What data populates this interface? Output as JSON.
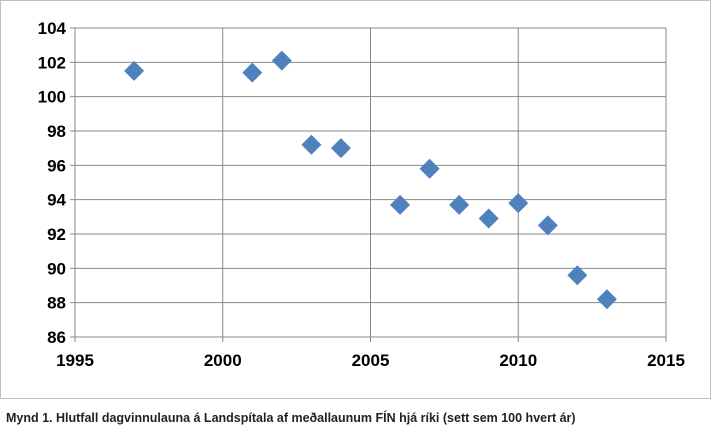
{
  "caption": "Mynd 1. Hlutfall dagvinnulauna á Landspítala af meðallaunum FÍN hjá ríki (sett sem 100 hvert ár)",
  "chart_data": {
    "type": "scatter",
    "title": "",
    "xlabel": "",
    "ylabel": "",
    "xlim": [
      1995,
      2015
    ],
    "ylim": [
      86,
      104
    ],
    "x_ticks": [
      1995,
      2000,
      2005,
      2010,
      2015
    ],
    "y_ticks": [
      86,
      88,
      90,
      92,
      94,
      96,
      98,
      100,
      102,
      104
    ],
    "grid": true,
    "legend": "none",
    "marker": "diamond",
    "marker_color": "#4f81bd",
    "series": [
      {
        "x": [
          1997,
          2001,
          2002,
          2003,
          2004,
          2006,
          2007,
          2008,
          2009,
          2010,
          2011,
          2012,
          2013
        ],
        "y": [
          101.5,
          101.4,
          102.1,
          97.2,
          97.0,
          93.7,
          95.8,
          93.7,
          92.9,
          93.8,
          92.5,
          89.6,
          88.2
        ]
      }
    ]
  }
}
